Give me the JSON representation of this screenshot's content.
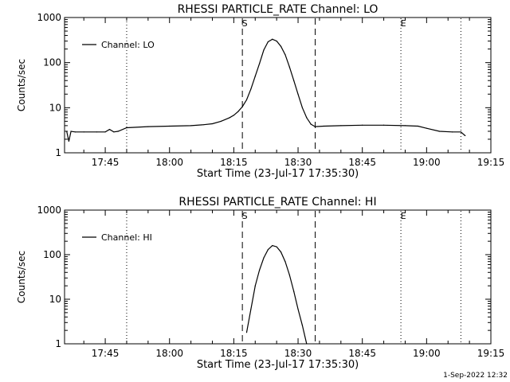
{
  "chart_data": [
    {
      "type": "line",
      "title": "RHESSI PARTICLE_RATE Channel: LO",
      "ylabel": "Counts/sec",
      "xlabel": "Start Time (23-Jul-17 17:35:30)",
      "y_scale": "log",
      "ylim": [
        1,
        1000
      ],
      "y_ticks": [
        {
          "value": 1,
          "label": "1"
        },
        {
          "value": 10,
          "label": "10"
        },
        {
          "value": 100,
          "label": "100"
        },
        {
          "value": 1000,
          "label": "1000"
        }
      ],
      "xlim": [
        "17:35:30",
        "19:15:00"
      ],
      "x_ticks": [
        "17:45",
        "18:00",
        "18:15",
        "18:30",
        "18:45",
        "19:00",
        "19:15"
      ],
      "legend": {
        "label": "Channel: LO",
        "placement": "top-left"
      },
      "markers": [
        {
          "time": "17:50:00",
          "style": "dotted",
          "label": ""
        },
        {
          "time": "18:17:00",
          "style": "dashed",
          "label": "S"
        },
        {
          "time": "18:34:00",
          "style": "dashed",
          "label": ""
        },
        {
          "time": "18:54:00",
          "style": "dotted",
          "label": "E"
        },
        {
          "time": "19:08:00",
          "style": "dotted",
          "label": ""
        }
      ],
      "series": [
        {
          "name": "Channel: LO",
          "x": [
            "17:36:00",
            "17:36:30",
            "17:37:00",
            "17:38:00",
            "17:40:00",
            "17:43:00",
            "17:45:00",
            "17:46:00",
            "17:47:00",
            "17:48:00",
            "17:50:00",
            "17:55:00",
            "18:00:00",
            "18:05:00",
            "18:08:00",
            "18:10:00",
            "18:12:00",
            "18:14:00",
            "18:15:00",
            "18:16:00",
            "18:17:00",
            "18:18:00",
            "18:19:00",
            "18:20:00",
            "18:21:00",
            "18:22:00",
            "18:23:00",
            "18:24:00",
            "18:25:00",
            "18:26:00",
            "18:27:00",
            "18:28:00",
            "18:29:00",
            "18:30:00",
            "18:31:00",
            "18:32:00",
            "18:33:00",
            "18:34:00",
            "18:36:00",
            "18:40:00",
            "18:45:00",
            "18:50:00",
            "18:55:00",
            "18:58:00",
            "19:00:00",
            "19:03:00",
            "19:06:00",
            "19:08:00",
            "19:09:00"
          ],
          "values": [
            3.0,
            1.8,
            3.0,
            2.9,
            2.9,
            2.9,
            2.9,
            3.3,
            2.9,
            3.0,
            3.6,
            3.8,
            3.9,
            4.0,
            4.2,
            4.4,
            5.0,
            6.0,
            6.8,
            8.2,
            10.5,
            15,
            26,
            50,
            95,
            190,
            290,
            330,
            300,
            230,
            150,
            80,
            40,
            20,
            10,
            6.0,
            4.3,
            3.8,
            3.9,
            4.0,
            4.1,
            4.1,
            4.0,
            3.9,
            3.5,
            3.0,
            2.9,
            2.9,
            2.4
          ]
        }
      ]
    },
    {
      "type": "line",
      "title": "RHESSI PARTICLE_RATE Channel: HI",
      "ylabel": "Counts/sec",
      "xlabel": "Start Time (23-Jul-17 17:35:30)",
      "y_scale": "log",
      "ylim": [
        1,
        1000
      ],
      "y_ticks": [
        {
          "value": 1,
          "label": "1"
        },
        {
          "value": 10,
          "label": "10"
        },
        {
          "value": 100,
          "label": "100"
        },
        {
          "value": 1000,
          "label": "1000"
        }
      ],
      "xlim": [
        "17:35:30",
        "19:15:00"
      ],
      "x_ticks": [
        "17:45",
        "18:00",
        "18:15",
        "18:30",
        "18:45",
        "19:00",
        "19:15"
      ],
      "legend": {
        "label": "Channel: HI",
        "placement": "top-left"
      },
      "markers": [
        {
          "time": "17:50:00",
          "style": "dotted",
          "label": ""
        },
        {
          "time": "18:17:00",
          "style": "dashed",
          "label": "S"
        },
        {
          "time": "18:34:00",
          "style": "dashed",
          "label": ""
        },
        {
          "time": "18:54:00",
          "style": "dotted",
          "label": "E"
        },
        {
          "time": "19:08:00",
          "style": "dotted",
          "label": ""
        }
      ],
      "series": [
        {
          "name": "Channel: HI",
          "x": [
            "18:18:00",
            "18:19:00",
            "18:20:00",
            "18:21:00",
            "18:22:00",
            "18:23:00",
            "18:24:00",
            "18:25:00",
            "18:26:00",
            "18:27:00",
            "18:28:00",
            "18:29:00",
            "18:30:00",
            "18:31:00",
            "18:32:00"
          ],
          "values": [
            1.8,
            6,
            20,
            45,
            85,
            130,
            160,
            150,
            115,
            70,
            35,
            15,
            6,
            2.6,
            1.0
          ]
        }
      ]
    }
  ],
  "footer": {
    "timestamp": "1-Sep-2022 12:32"
  }
}
